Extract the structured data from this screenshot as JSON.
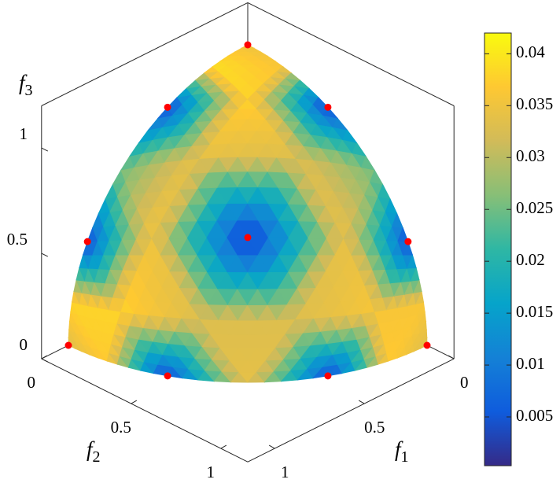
{
  "chart_data": {
    "type": "surface3d",
    "xlabel": {
      "text": "f",
      "subscript": "1"
    },
    "ylabel": {
      "text": "f",
      "subscript": "2"
    },
    "zlabel": {
      "text": "f",
      "subscript": "3"
    },
    "xlim": [
      0,
      1.15
    ],
    "ylim": [
      0,
      1.15
    ],
    "zlim": [
      0,
      1.2
    ],
    "xticks": [
      0,
      0.5,
      1
    ],
    "yticks": [
      0,
      0.5,
      1
    ],
    "zticks": [
      0,
      0.5,
      1
    ],
    "surface": {
      "rows": [
        [
          0.033,
          0.037,
          0.004,
          0.034,
          0.004,
          0.037,
          0.033
        ],
        [
          0.038,
          0.038,
          0.033,
          0.033,
          0.036,
          0.036
        ],
        [
          0.004,
          0.035,
          0.002,
          0.034,
          0.004
        ],
        [
          0.025,
          0.034,
          0.033,
          0.025
        ],
        [
          0.004,
          0.038,
          0.004
        ],
        [
          0.039,
          0.036
        ],
        [
          0.035
        ]
      ]
    },
    "colormap": [
      "#352a87",
      "#0f5cdd",
      "#1481d6",
      "#06a4ca",
      "#2eb7a4",
      "#87bf77",
      "#d1bb59",
      "#fec832",
      "#f9fb0e"
    ],
    "colorbar": {
      "clim": [
        0.0003,
        0.042
      ],
      "ticks": [
        0.005,
        0.01,
        0.015,
        0.02,
        0.025,
        0.03,
        0.035,
        0.04
      ]
    },
    "markers": {
      "color": "#ff0000",
      "f1": [
        0,
        0.447,
        0,
        0.894,
        0,
        0.577,
        0.894,
        0.447,
        1,
        0
      ],
      "f2": [
        0,
        0,
        0.447,
        0,
        0.894,
        0.577,
        0.447,
        0.894,
        0,
        1
      ],
      "f3": [
        1,
        0.894,
        0.894,
        0.447,
        0.447,
        0.577,
        0,
        0,
        0,
        0
      ]
    }
  }
}
